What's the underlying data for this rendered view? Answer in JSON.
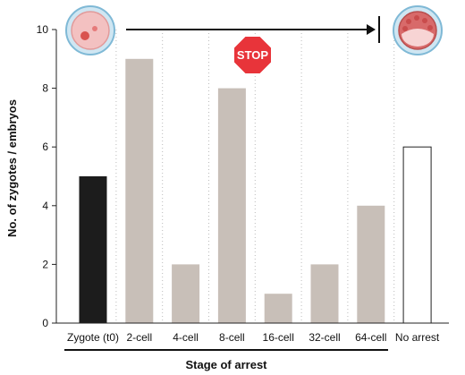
{
  "chart_data": {
    "type": "bar",
    "title": "",
    "xlabel": "Stage of arrest",
    "ylabel": "No. of zygotes / embryos",
    "ylim": [
      0,
      10
    ],
    "yticks": [
      0,
      2,
      4,
      6,
      8,
      10
    ],
    "grid": "vertical dotted",
    "categories": [
      "Zygote (t0)",
      "2-cell",
      "4-cell",
      "8-cell",
      "16-cell",
      "32-cell",
      "64-cell",
      "No arrest"
    ],
    "values": [
      5,
      9,
      2,
      8,
      1,
      2,
      4,
      6
    ],
    "bar_colors": [
      "#1c1c1c",
      "#c8bfb8",
      "#c8bfb8",
      "#c8bfb8",
      "#c8bfb8",
      "#c8bfb8",
      "#c8bfb8",
      "#ffffff"
    ],
    "annotation": {
      "stop_sign": "STOP",
      "stop_color": "#e8343a",
      "zygote_icon": "zygote-icon",
      "blastocyst_icon": "blastocyst-icon",
      "arrow": "zygote to blastocyst progression"
    }
  }
}
